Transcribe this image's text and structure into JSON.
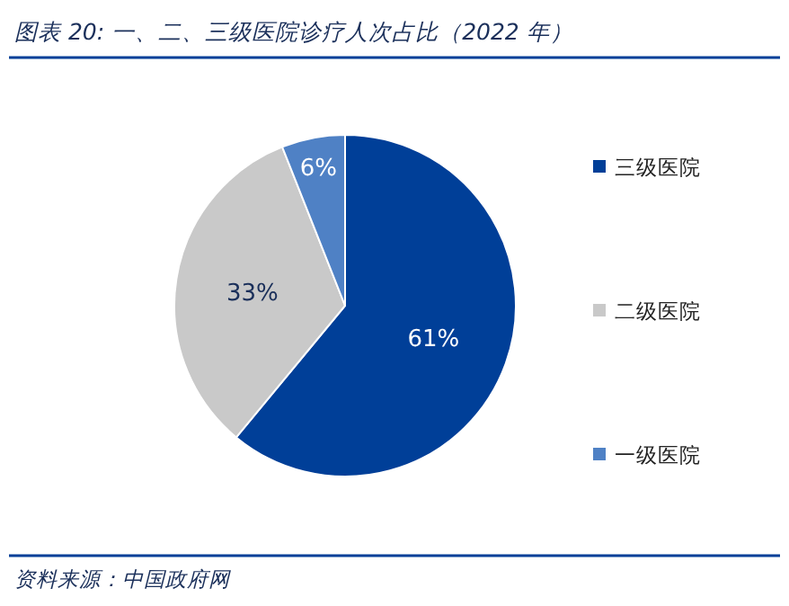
{
  "chart_data": {
    "type": "pie",
    "title": "图表 20:  一、二、三级医院诊疗人次占比（2022 年）",
    "categories": [
      "三级医院",
      "二级医院",
      "一级医院"
    ],
    "values": [
      61,
      33,
      6
    ],
    "value_labels": [
      "61%",
      "33%",
      "6%"
    ],
    "colors": [
      "#003f98",
      "#c9c9c9",
      "#4f81c5"
    ],
    "legend": "right",
    "annotations": [
      "资料来源：中国政府网"
    ]
  }
}
